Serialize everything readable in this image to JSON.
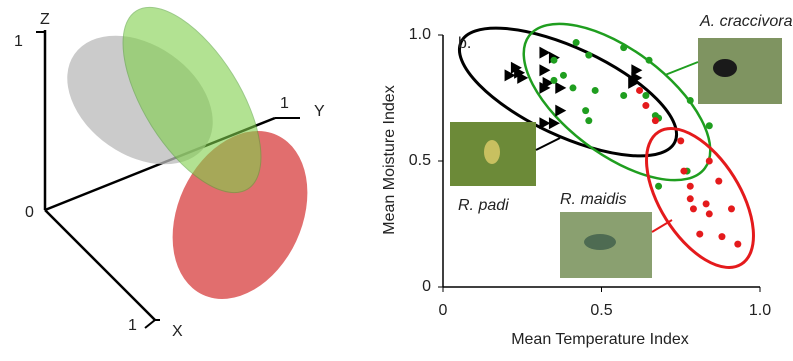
{
  "diagram_3d": {
    "axes": {
      "z": "Z",
      "y": "Y",
      "x": "X"
    },
    "origin": "0",
    "z_tick": "1",
    "y_tick": "1",
    "x_tick": "1"
  },
  "chart_data": {
    "type": "scatter",
    "panel_label": "b.",
    "x_label": "Mean Temperature Index",
    "y_label": "Mean Moisture Index",
    "xlim": [
      0,
      1.0
    ],
    "ylim": [
      0,
      1.0
    ],
    "xticks": [
      0,
      0.5,
      {
        "value": 1.0,
        "label": "1.0"
      }
    ],
    "yticks": [
      0,
      0.5,
      {
        "value": 1.0,
        "label": "1.0"
      }
    ],
    "series": [
      {
        "name": "R. padi",
        "color": "#000000",
        "marker": "triangle",
        "x": [
          0.32,
          0.35,
          0.23,
          0.24,
          0.21,
          0.25,
          0.32,
          0.33,
          0.37,
          0.32,
          0.61,
          0.61,
          0.6,
          0.37,
          0.32,
          0.35
        ],
        "y": [
          0.93,
          0.91,
          0.87,
          0.85,
          0.84,
          0.83,
          0.86,
          0.81,
          0.79,
          0.79,
          0.86,
          0.83,
          0.81,
          0.7,
          0.65,
          0.65
        ]
      },
      {
        "name": "A. craccivora",
        "color": "#1f9e1f",
        "marker": "circle",
        "x": [
          0.42,
          0.46,
          0.57,
          0.35,
          0.38,
          0.35,
          0.41,
          0.48,
          0.45,
          0.46,
          0.57,
          0.64,
          0.67,
          0.68,
          0.65,
          0.78,
          0.84,
          0.77,
          0.68
        ],
        "y": [
          0.97,
          0.92,
          0.95,
          0.9,
          0.84,
          0.82,
          0.79,
          0.78,
          0.7,
          0.66,
          0.76,
          0.76,
          0.68,
          0.67,
          0.9,
          0.74,
          0.64,
          0.46,
          0.4
        ]
      },
      {
        "name": "R. maidis",
        "color": "#e41a1c",
        "marker": "circle",
        "x": [
          0.62,
          0.64,
          0.67,
          0.75,
          0.84,
          0.76,
          0.78,
          0.87,
          0.78,
          0.79,
          0.83,
          0.84,
          0.91,
          0.81,
          0.88,
          0.93
        ],
        "y": [
          0.78,
          0.72,
          0.66,
          0.58,
          0.5,
          0.46,
          0.4,
          0.42,
          0.35,
          0.31,
          0.33,
          0.29,
          0.31,
          0.21,
          0.2,
          0.17
        ]
      }
    ]
  }
}
